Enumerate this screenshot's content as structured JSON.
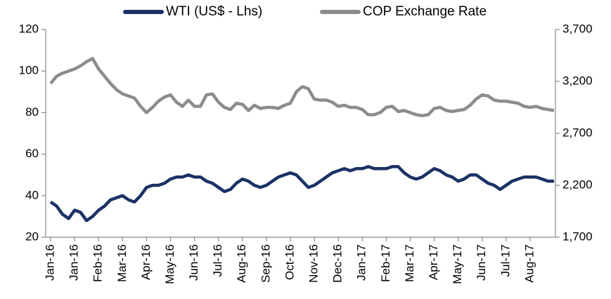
{
  "chart_data": {
    "type": "line",
    "categories": [
      "Jan-16",
      null,
      null,
      null,
      "Jan-16",
      null,
      null,
      null,
      "Feb-16",
      null,
      null,
      null,
      "Mar-16",
      null,
      null,
      null,
      "Apr-16",
      null,
      null,
      null,
      "May-16",
      null,
      null,
      null,
      "Jun-16",
      null,
      null,
      null,
      "Jul-16",
      null,
      null,
      null,
      "Aug-16",
      null,
      null,
      null,
      "Sep-16",
      null,
      null,
      null,
      "Oct-16",
      null,
      null,
      null,
      "Nov-16",
      null,
      null,
      null,
      "Dec-16",
      null,
      null,
      null,
      "Jan-17",
      null,
      null,
      null,
      "Feb-17",
      null,
      null,
      null,
      "Mar-17",
      null,
      null,
      null,
      "Apr-17",
      null,
      null,
      null,
      "May-17",
      null,
      null,
      null,
      "Jun-17",
      null,
      null,
      null,
      "Jul-17",
      null,
      null,
      null,
      "Aug-17",
      null,
      null,
      null,
      null
    ],
    "series": [
      {
        "name": "WTI (US$ - Lhs)",
        "color": "#1b3266",
        "values": [
          37,
          35,
          31,
          29,
          33,
          32,
          28,
          30,
          33,
          35,
          38,
          39,
          40,
          38,
          37,
          40,
          44,
          45,
          45,
          46,
          48,
          49,
          49,
          50,
          49,
          49,
          47,
          46,
          44,
          42,
          43,
          46,
          48,
          47,
          45,
          44,
          45,
          47,
          49,
          50,
          51,
          50,
          47,
          44,
          45,
          47,
          49,
          51,
          52,
          53,
          52,
          53,
          53,
          54,
          53,
          53,
          53,
          54,
          54,
          51,
          49,
          48,
          49,
          51,
          53,
          52,
          50,
          49,
          47,
          48,
          50,
          50,
          48,
          46,
          45,
          43,
          45,
          47,
          48,
          49,
          49,
          49,
          48,
          47,
          47
        ]
      },
      {
        "name": "COP Exchange Rate",
        "color": "#8c8c8c",
        "axis": "y2",
        "values": [
          3180,
          3250,
          3280,
          3300,
          3320,
          3350,
          3390,
          3420,
          3320,
          3250,
          3180,
          3120,
          3080,
          3060,
          3040,
          2960,
          2900,
          2950,
          3010,
          3050,
          3070,
          3000,
          2960,
          3020,
          2960,
          2960,
          3070,
          3080,
          3000,
          2950,
          2930,
          2990,
          2980,
          2920,
          2970,
          2940,
          2950,
          2950,
          2940,
          2970,
          2990,
          3100,
          3150,
          3130,
          3030,
          3020,
          3020,
          3000,
          2960,
          2970,
          2950,
          2950,
          2930,
          2880,
          2880,
          2900,
          2950,
          2960,
          2910,
          2920,
          2900,
          2880,
          2870,
          2880,
          2940,
          2950,
          2920,
          2910,
          2920,
          2930,
          2970,
          3030,
          3070,
          3060,
          3020,
          3010,
          3010,
          3000,
          2990,
          2960,
          2950,
          2960,
          2940,
          2930,
          2920
        ]
      }
    ],
    "ylim": [
      20,
      120
    ],
    "yticks": [
      20,
      40,
      60,
      80,
      100,
      120
    ],
    "y2lim": [
      1700,
      3700
    ],
    "y2ticks": [
      {
        "value": 1700,
        "label": "1,700"
      },
      {
        "value": 2200,
        "label": "2,200"
      },
      {
        "value": 2700,
        "label": "2,700"
      },
      {
        "value": 3200,
        "label": "3,200"
      },
      {
        "value": 3700,
        "label": "3,700"
      }
    ],
    "legend": "top"
  }
}
